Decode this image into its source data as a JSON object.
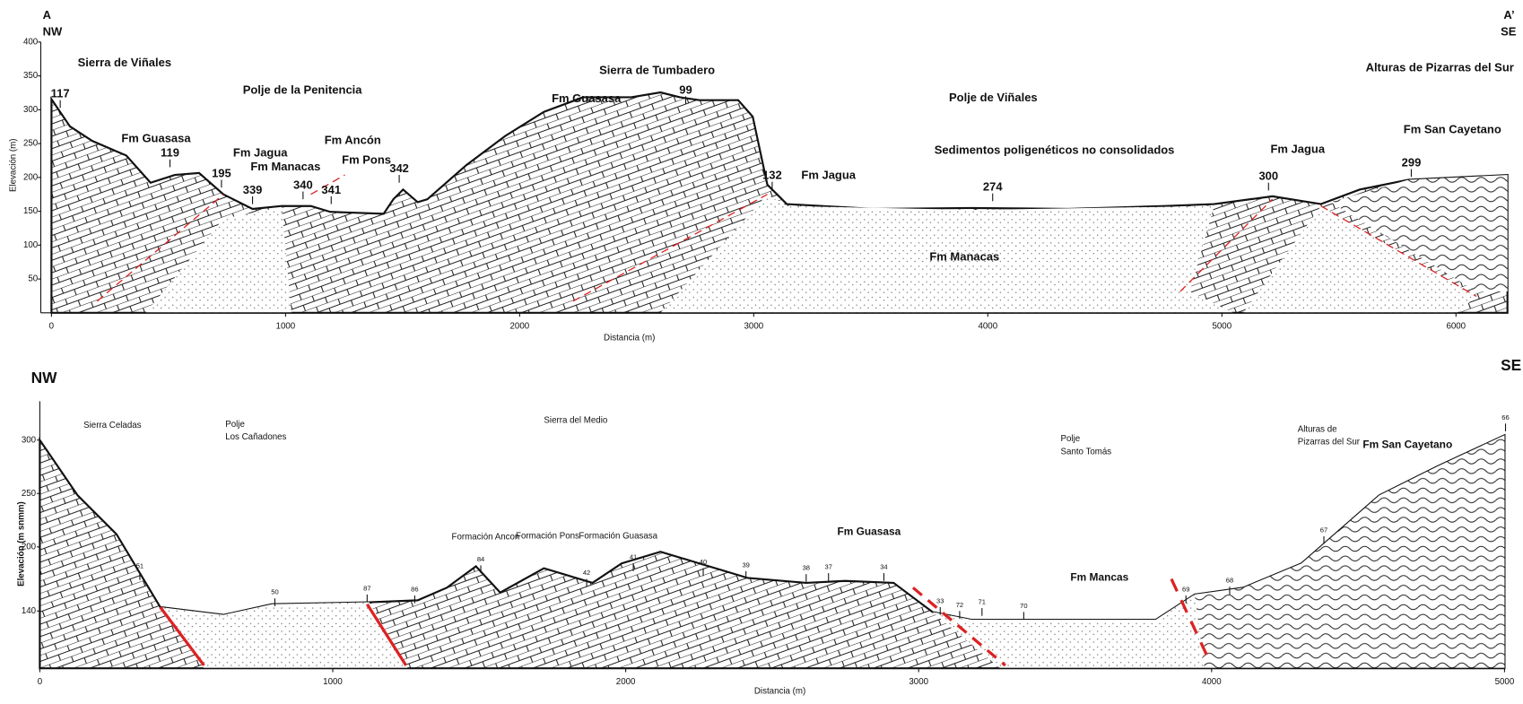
{
  "panels": [
    {
      "labels": [
        "A",
        "NW",
        "A’",
        "SE",
        "Sierra de Viñales",
        "Polje de la Penitencia",
        "Sierra de Tumbadero",
        "Polje de Viñales",
        "Alturas de Pizarras del Sur",
        "Fm Guasasa",
        "Fm Guasasa",
        "Fm Jagua",
        "Fm Manacas",
        "Fm Ancón",
        "Fm Pons",
        "Fm Jagua",
        "Sedimentos poligenéticos no consolidados",
        "Fm Jagua",
        "Fm San Cayetano",
        "Fm Manacas"
      ],
      "points": [
        "117",
        "119",
        "195",
        "339",
        "340",
        "341",
        "342",
        "99",
        "132",
        "274",
        "300",
        "299"
      ],
      "x_axis": {
        "title": "Distancia (m)",
        "ticks": [
          0,
          1000,
          2000,
          3000,
          4000,
          5000,
          6000
        ]
      },
      "y_axis": {
        "title": "Elevación (m)",
        "ticks": [
          50,
          100,
          150,
          200,
          250,
          300,
          350,
          400
        ]
      }
    },
    {
      "labels": [
        "NW",
        "SE",
        "Sierra Celadas",
        [
          "Polje",
          "Los Cañadones"
        ],
        "Sierra del Medio",
        "Formación Ancon",
        "Formación Pons",
        "Formación Guasasa",
        "Fm Guasasa",
        [
          "Polje",
          "Santo Tomás"
        ],
        [
          "Alturas de",
          "Pizarras del Sur"
        ],
        "Fm San Cayetano",
        "Fm Mancas"
      ],
      "points": [
        "51",
        "50",
        "87",
        "86",
        "84",
        "42",
        "41",
        "40",
        "39",
        "38",
        "37",
        "34",
        "33",
        "72",
        "71",
        "70",
        "69",
        "68",
        "67",
        "66"
      ],
      "x_axis": {
        "title": "Distancia (m)",
        "ticks": [
          0,
          1000,
          2000,
          3000,
          4000,
          5000
        ]
      },
      "y_axis": {
        "title": "Elevación (m snmm)",
        "ticks": [
          140,
          200,
          250,
          300
        ]
      }
    }
  ]
}
